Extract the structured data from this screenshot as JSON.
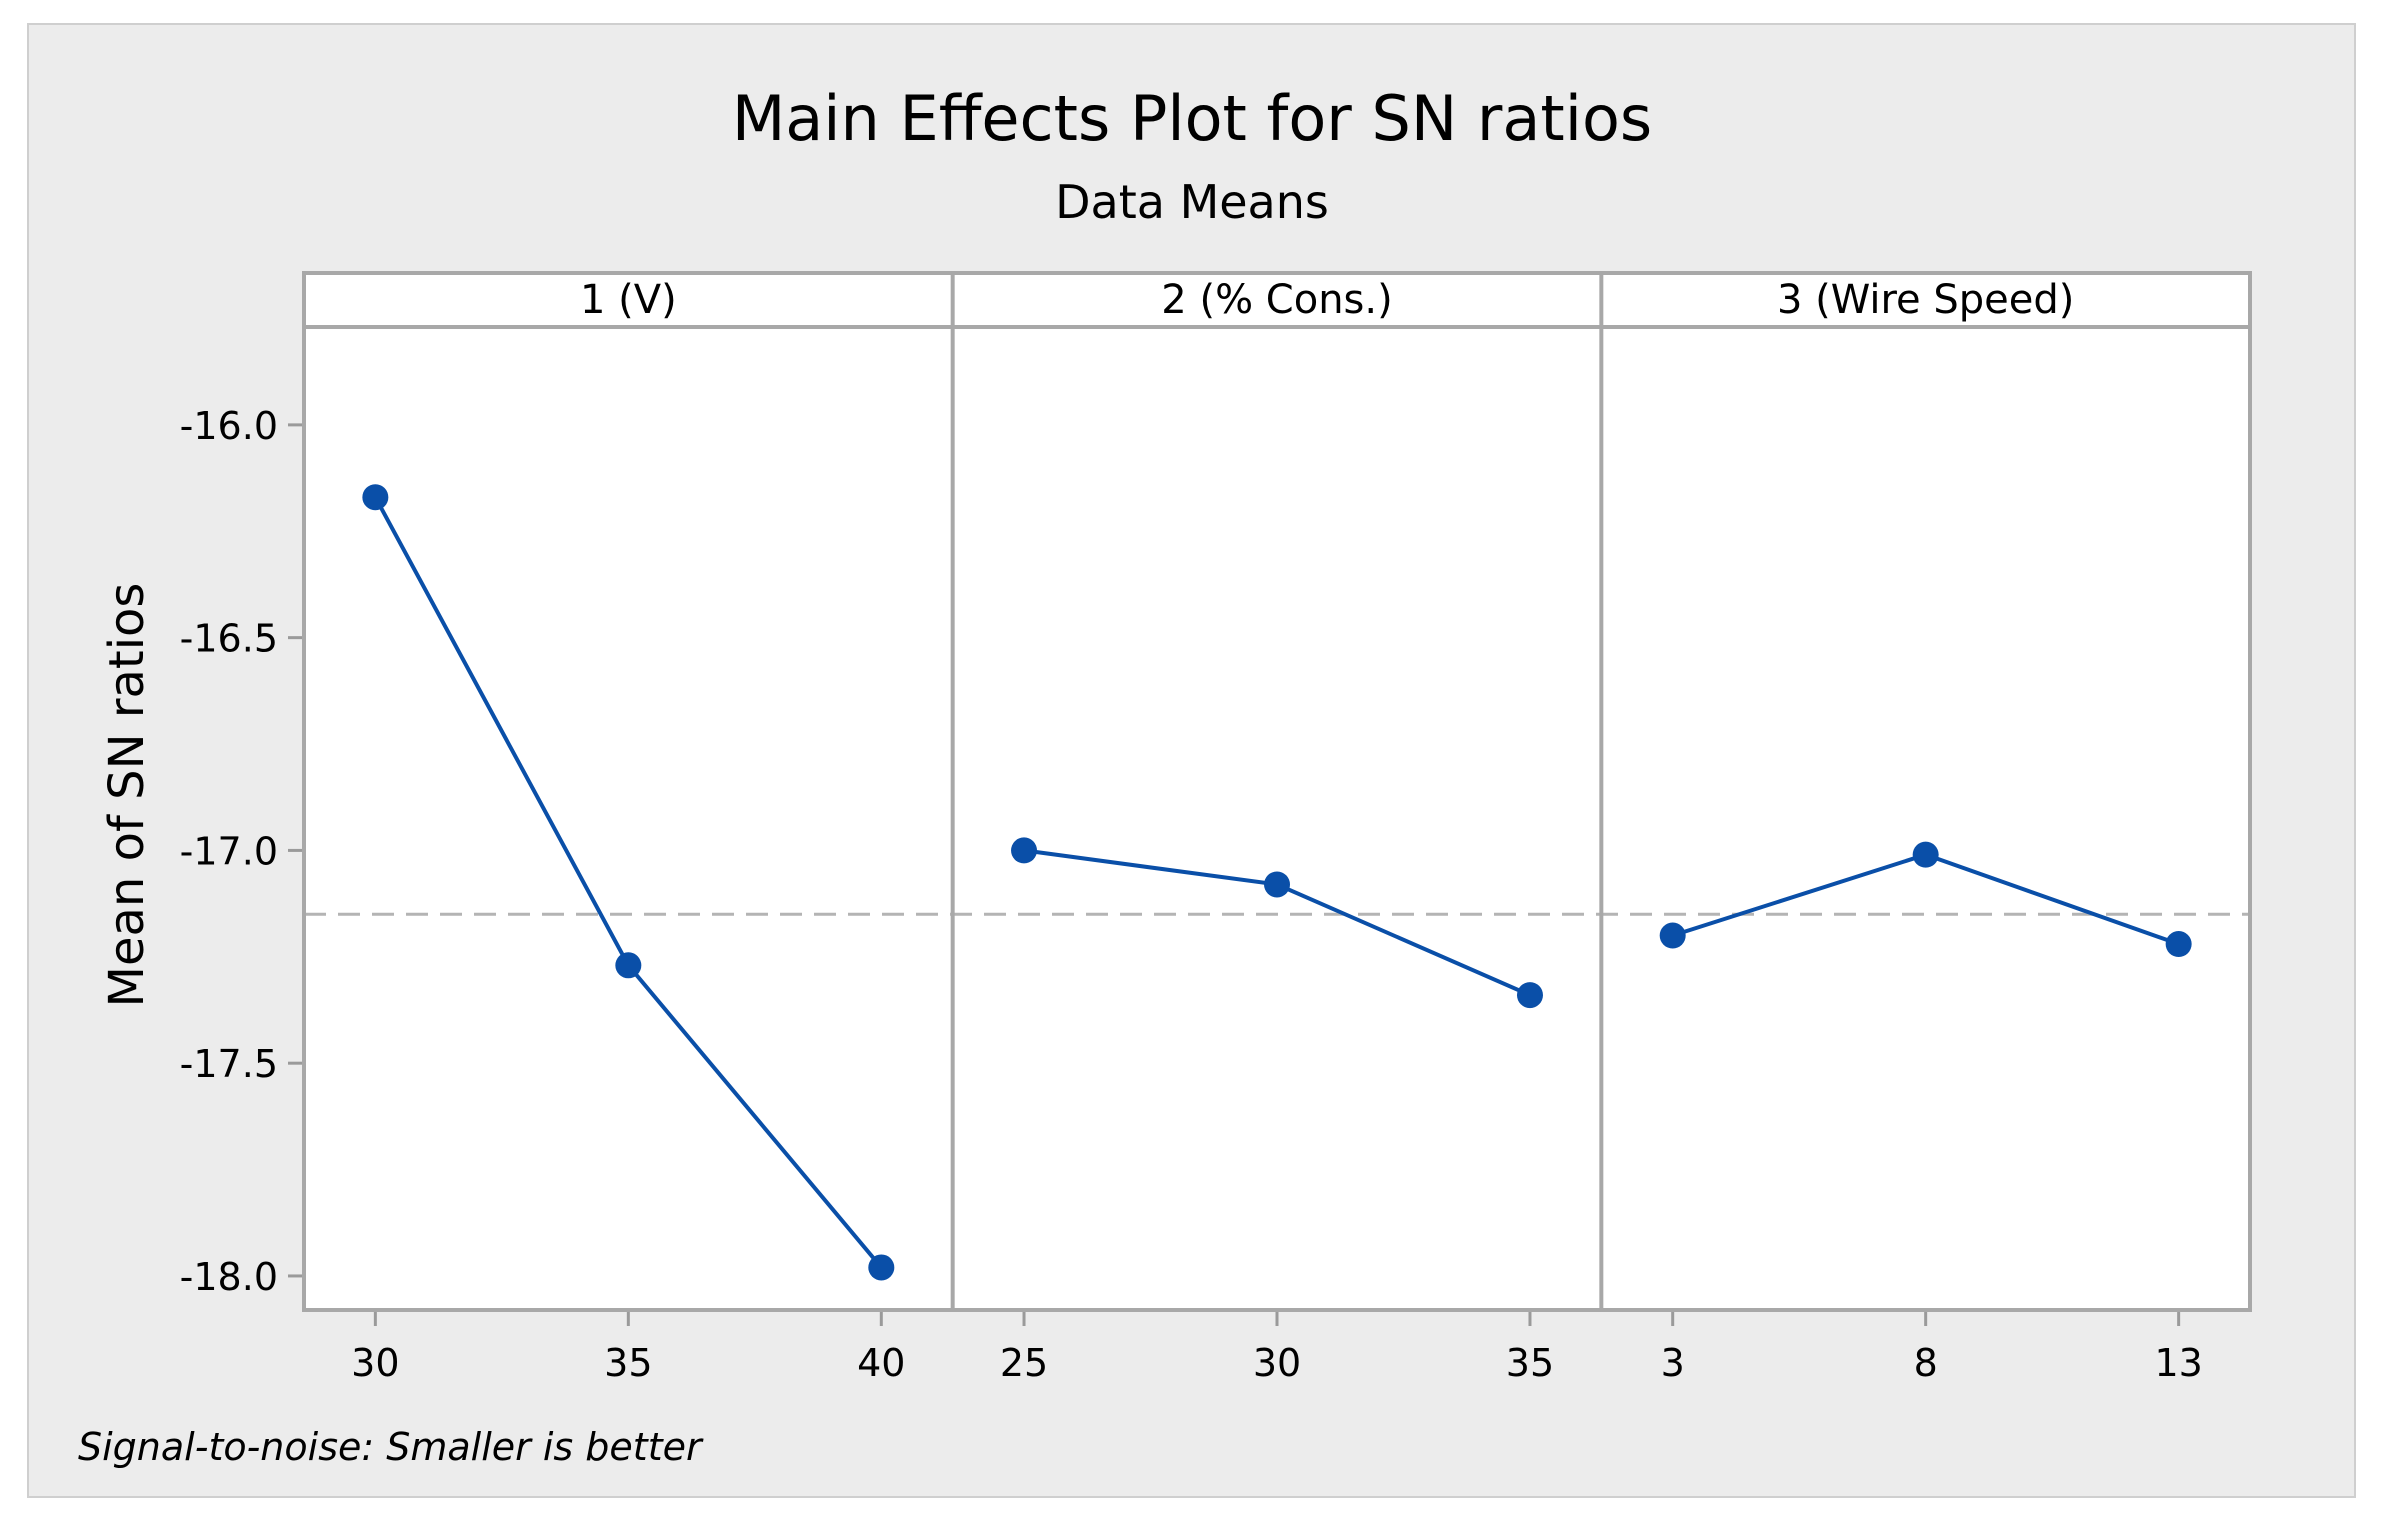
{
  "chart_data": {
    "type": "line",
    "title": "Main Effects Plot for SN ratios",
    "subtitle": "Data Means",
    "ylabel": "Mean of SN ratios",
    "footnote": "Signal-to-noise: Smaller is better",
    "ylim": [
      -18.08,
      -15.77
    ],
    "yticks": [
      -16.0,
      -16.5,
      -17.0,
      -17.5,
      -18.0
    ],
    "ytick_labels": [
      "-16.0",
      "-16.5",
      "-17.0",
      "-17.5",
      "-18.0"
    ],
    "overall_mean": -17.15,
    "series_color": "#0a4fa8",
    "panels": [
      {
        "label": "1 (V)",
        "categories": [
          "30",
          "35",
          "40"
        ],
        "values": [
          -16.17,
          -17.27,
          -17.98
        ]
      },
      {
        "label": "2  (% Cons.)",
        "categories": [
          "25",
          "30",
          "35"
        ],
        "values": [
          -17.0,
          -17.08,
          -17.34
        ]
      },
      {
        "label": "3 (Wire Speed)",
        "categories": [
          "3",
          "8",
          "13"
        ],
        "values": [
          -17.2,
          -17.01,
          -17.22
        ]
      }
    ]
  }
}
